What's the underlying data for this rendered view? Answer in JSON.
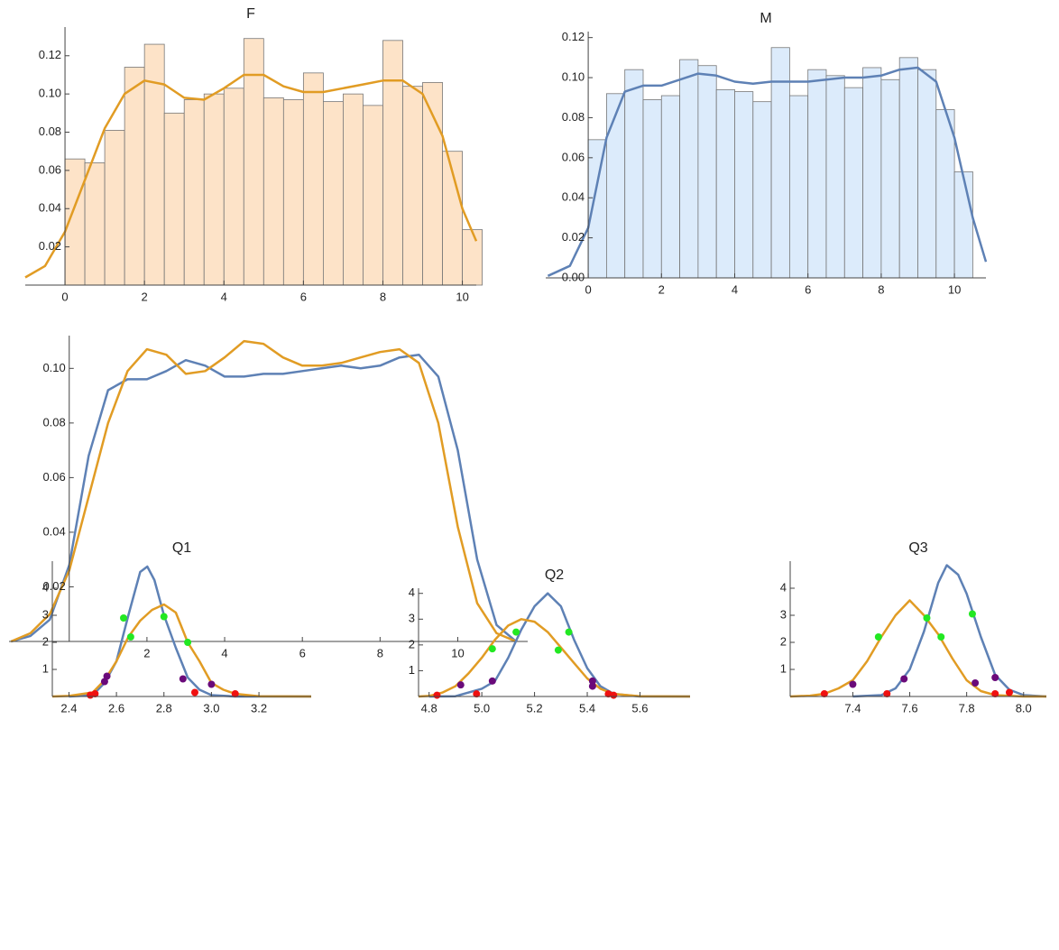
{
  "chart_data": [
    {
      "type": "histogram",
      "title": "F",
      "bins": [
        0,
        0.5,
        1,
        1.5,
        2,
        2.5,
        3,
        3.5,
        4,
        4.5,
        5,
        5.5,
        6,
        6.5,
        7,
        7.5,
        8,
        8.5,
        9,
        9.5,
        10,
        10.5
      ],
      "values": [
        0.066,
        0.064,
        0.081,
        0.114,
        0.126,
        0.09,
        0.097,
        0.1,
        0.103,
        0.129,
        0.098,
        0.097,
        0.111,
        0.096,
        0.1,
        0.094,
        0.128,
        0.104,
        0.106,
        0.07,
        0.029
      ],
      "color": "#fde3c8",
      "series": [
        {
          "color": "#e19c24",
          "x": [
            -1,
            -0.5,
            0,
            0.5,
            1,
            1.5,
            2,
            2.5,
            3,
            3.5,
            4,
            4.5,
            5,
            5.5,
            6,
            6.5,
            7,
            7.5,
            8,
            8.5,
            9,
            9.5,
            10,
            10.35
          ],
          "y": [
            0.004,
            0.01,
            0.028,
            0.055,
            0.082,
            0.1,
            0.107,
            0.105,
            0.098,
            0.097,
            0.103,
            0.11,
            0.11,
            0.104,
            0.101,
            0.101,
            0.103,
            0.105,
            0.107,
            0.107,
            0.1,
            0.078,
            0.04,
            0.023
          ]
        }
      ],
      "xlim": [
        -1,
        10.35
      ],
      "ylim": [
        0,
        0.135
      ],
      "xticks": [
        0,
        2,
        4,
        6,
        8,
        10
      ],
      "yticks": [
        0.02,
        0.04,
        0.06,
        0.08,
        {
          "value": 0.1,
          "label": "0.10"
        },
        0.12
      ]
    },
    {
      "type": "histogram",
      "title": "M",
      "bins": [
        0,
        0.5,
        1,
        1.5,
        2,
        2.5,
        3,
        3.5,
        4,
        4.5,
        5,
        5.5,
        6,
        6.5,
        7,
        7.5,
        8,
        8.5,
        9,
        9.5,
        10,
        10.5
      ],
      "values": [
        0.069,
        0.092,
        0.104,
        0.089,
        0.091,
        0.109,
        0.106,
        0.094,
        0.093,
        0.088,
        0.115,
        0.091,
        0.104,
        0.101,
        0.095,
        0.105,
        0.099,
        0.11,
        0.104,
        0.084,
        0.053
      ],
      "color": "#dcebfb",
      "series": [
        {
          "color": "#5e81b5",
          "x": [
            -1.1,
            -0.5,
            0,
            0.5,
            1,
            1.5,
            2,
            2.5,
            3,
            3.5,
            4,
            4.5,
            5,
            5.5,
            6,
            6.5,
            7,
            7.5,
            8,
            8.5,
            9,
            9.5,
            10,
            10.5,
            10.86
          ],
          "y": [
            0.001,
            0.006,
            0.025,
            0.07,
            0.093,
            0.096,
            0.096,
            0.099,
            0.102,
            0.101,
            0.098,
            0.097,
            0.098,
            0.098,
            0.098,
            0.099,
            0.1,
            0.1,
            0.101,
            0.104,
            0.105,
            0.098,
            0.07,
            0.03,
            0.008
          ]
        }
      ],
      "xlim": [
        -1.16,
        10.86
      ],
      "ylim": [
        0,
        0.123
      ],
      "xticks": [
        0,
        2,
        4,
        6,
        8,
        10
      ],
      "yticks": [
        {
          "value": 0,
          "label": "0.00"
        },
        0.02,
        0.04,
        0.06,
        0.08,
        {
          "value": 0.1,
          "label": "0.10"
        },
        0.12
      ]
    },
    {
      "type": "line",
      "series": [
        {
          "color": "#5e81b5",
          "x": [
            -1.5,
            -1,
            -0.5,
            0,
            0.5,
            1,
            1.5,
            2,
            2.5,
            3,
            3.5,
            4,
            4.5,
            5,
            5.5,
            6,
            6.5,
            7,
            7.5,
            8,
            8.5,
            9,
            9.5,
            10,
            10.5,
            11,
            11.5
          ],
          "y": [
            0,
            0.002,
            0.008,
            0.028,
            0.068,
            0.092,
            0.096,
            0.096,
            0.099,
            0.103,
            0.101,
            0.097,
            0.097,
            0.098,
            0.098,
            0.099,
            0.1,
            0.101,
            0.1,
            0.101,
            0.104,
            0.105,
            0.097,
            0.07,
            0.03,
            0.006,
            0
          ]
        },
        {
          "color": "#e19c24",
          "x": [
            -1.5,
            -1,
            -0.5,
            0,
            0.5,
            1,
            1.5,
            2,
            2.5,
            3,
            3.5,
            4,
            4.5,
            5,
            5.5,
            6,
            6.5,
            7,
            7.5,
            8,
            8.5,
            9,
            9.5,
            10,
            10.5,
            11,
            11.5
          ],
          "y": [
            0,
            0.003,
            0.01,
            0.026,
            0.053,
            0.08,
            0.099,
            0.107,
            0.105,
            0.098,
            0.099,
            0.104,
            0.11,
            0.109,
            0.104,
            0.101,
            0.101,
            0.102,
            0.104,
            0.106,
            0.107,
            0.102,
            0.08,
            0.042,
            0.014,
            0.003,
            0
          ]
        }
      ],
      "xlim": [
        -1.55,
        11.8
      ],
      "ylim": [
        0,
        0.112
      ],
      "xticks": [
        2,
        4,
        6,
        8,
        10
      ],
      "yticks": [
        0.02,
        0.04,
        0.06,
        0.08,
        {
          "value": 0.1,
          "label": "0.10"
        }
      ]
    },
    {
      "type": "line",
      "title": "Q1",
      "series": [
        {
          "color": "#5e81b5",
          "x": [
            2.4,
            2.5,
            2.55,
            2.6,
            2.65,
            2.7,
            2.73,
            2.76,
            2.8,
            2.85,
            2.9,
            2.95,
            3.0,
            3.1,
            3.42
          ],
          "y": [
            0,
            0.05,
            0.5,
            1.3,
            3.0,
            4.6,
            4.8,
            4.3,
            3.0,
            1.8,
            0.7,
            0.25,
            0.05,
            0,
            0
          ]
        },
        {
          "color": "#e19c24",
          "x": [
            2.33,
            2.4,
            2.5,
            2.55,
            2.6,
            2.65,
            2.7,
            2.75,
            2.8,
            2.85,
            2.9,
            2.95,
            3.0,
            3.05,
            3.1,
            3.2,
            3.42
          ],
          "y": [
            0,
            0.02,
            0.15,
            0.6,
            1.3,
            2.2,
            2.8,
            3.2,
            3.4,
            3.1,
            2.0,
            1.3,
            0.5,
            0.25,
            0.1,
            0.01,
            0
          ]
        }
      ],
      "markers": [
        {
          "color": "#22e822",
          "x": [
            2.63,
            2.66,
            2.8,
            2.9
          ],
          "y": [
            2.9,
            2.2,
            2.95,
            2.0
          ]
        },
        {
          "color": "#6a0a7a",
          "x": [
            2.55,
            2.56,
            2.88,
            3.0
          ],
          "y": [
            0.55,
            0.75,
            0.65,
            0.45
          ]
        },
        {
          "color": "#f01010",
          "x": [
            2.49,
            2.51,
            2.93,
            3.1
          ],
          "y": [
            0.05,
            0.1,
            0.15,
            0.1
          ]
        }
      ],
      "xlim": [
        2.33,
        3.42
      ],
      "ylim": [
        0,
        5
      ],
      "xticks": [
        2.4,
        2.6,
        2.8,
        {
          "value": 3,
          "label": "3.0"
        },
        3.2
      ],
      "yticks": [
        1,
        2,
        3,
        4
      ]
    },
    {
      "type": "line",
      "title": "Q2",
      "series": [
        {
          "color": "#5e81b5",
          "x": [
            4.8,
            4.9,
            5.0,
            5.05,
            5.1,
            5.15,
            5.2,
            5.25,
            5.3,
            5.35,
            5.4,
            5.45,
            5.5,
            5.6,
            5.79
          ],
          "y": [
            0,
            0.01,
            0.3,
            0.6,
            1.5,
            2.6,
            3.5,
            4.0,
            3.5,
            2.2,
            1.1,
            0.4,
            0.1,
            0,
            0
          ]
        },
        {
          "color": "#e19c24",
          "x": [
            4.76,
            4.8,
            4.85,
            4.9,
            4.95,
            5.0,
            5.05,
            5.1,
            5.15,
            5.2,
            5.25,
            5.3,
            5.35,
            5.4,
            5.45,
            5.5,
            5.6,
            5.79
          ],
          "y": [
            0,
            0.02,
            0.15,
            0.4,
            0.9,
            1.5,
            2.2,
            2.75,
            3.0,
            2.9,
            2.5,
            1.9,
            1.3,
            0.7,
            0.3,
            0.1,
            0.01,
            0
          ]
        }
      ],
      "markers": [
        {
          "color": "#22e822",
          "x": [
            5.04,
            5.13,
            5.29,
            5.33
          ],
          "y": [
            1.85,
            2.5,
            1.8,
            2.5
          ]
        },
        {
          "color": "#6a0a7a",
          "x": [
            4.92,
            5.04,
            5.42,
            5.42
          ],
          "y": [
            0.45,
            0.6,
            0.6,
            0.4
          ]
        },
        {
          "color": "#f01010",
          "x": [
            4.83,
            4.98,
            5.48,
            5.5
          ],
          "y": [
            0.05,
            0.1,
            0.1,
            0.05
          ]
        }
      ],
      "xlim": [
        4.76,
        5.79
      ],
      "ylim": [
        0,
        4.2
      ],
      "xticks": [
        4.8,
        {
          "value": 5,
          "label": "5.0"
        },
        5.2,
        5.4,
        5.6
      ],
      "yticks": [
        1,
        2,
        3,
        4
      ]
    },
    {
      "type": "line",
      "title": "Q3",
      "series": [
        {
          "color": "#5e81b5",
          "x": [
            7.4,
            7.5,
            7.55,
            7.6,
            7.65,
            7.7,
            7.73,
            7.77,
            7.8,
            7.85,
            7.9,
            7.95,
            8.0,
            8.08
          ],
          "y": [
            0,
            0.05,
            0.3,
            1.0,
            2.4,
            4.2,
            4.85,
            4.5,
            3.8,
            2.2,
            0.8,
            0.25,
            0.05,
            0
          ]
        },
        {
          "color": "#e19c24",
          "x": [
            7.18,
            7.25,
            7.3,
            7.35,
            7.4,
            7.45,
            7.5,
            7.55,
            7.6,
            7.65,
            7.7,
            7.75,
            7.8,
            7.85,
            7.9,
            8.0,
            8.08
          ],
          "y": [
            0,
            0.03,
            0.1,
            0.3,
            0.6,
            1.3,
            2.2,
            3.0,
            3.55,
            3.0,
            2.3,
            1.4,
            0.6,
            0.2,
            0.05,
            0,
            0
          ]
        }
      ],
      "markers": [
        {
          "color": "#22e822",
          "x": [
            7.49,
            7.66,
            7.71,
            7.82
          ],
          "y": [
            2.2,
            2.9,
            2.2,
            3.05
          ]
        },
        {
          "color": "#6a0a7a",
          "x": [
            7.4,
            7.58,
            7.83,
            7.9
          ],
          "y": [
            0.45,
            0.65,
            0.5,
            0.7
          ]
        },
        {
          "color": "#f01010",
          "x": [
            7.3,
            7.52,
            7.9,
            7.95
          ],
          "y": [
            0.1,
            0.1,
            0.1,
            0.15
          ]
        }
      ],
      "xlim": [
        7.18,
        8.08
      ],
      "ylim": [
        0,
        5
      ],
      "xticks": [
        7.4,
        7.6,
        7.8,
        {
          "value": 8,
          "label": "8.0"
        }
      ],
      "yticks": [
        1,
        2,
        3,
        4
      ]
    }
  ]
}
